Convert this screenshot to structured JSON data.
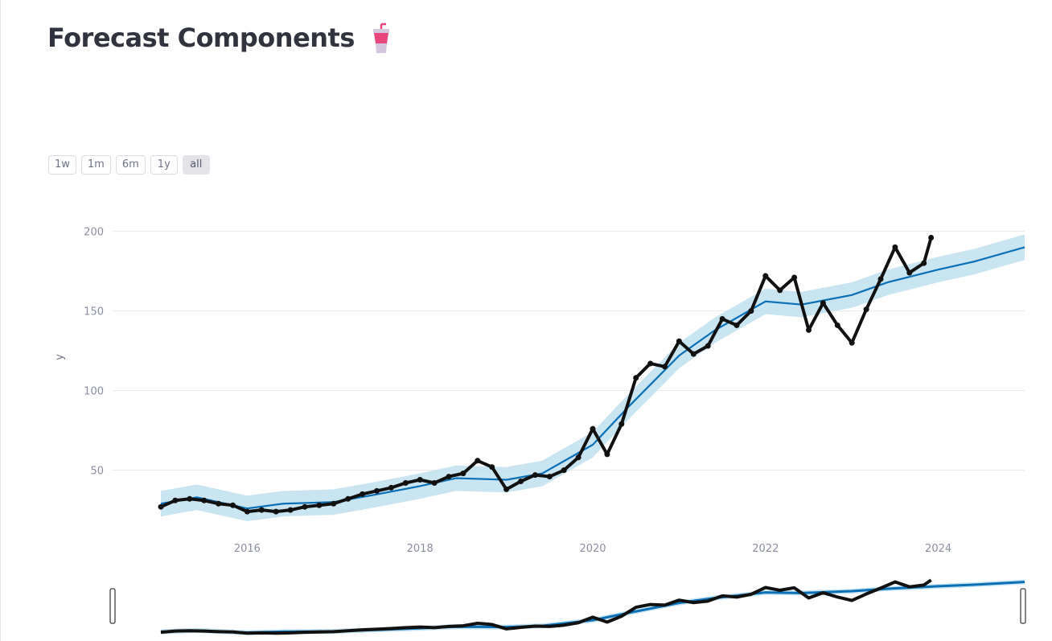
{
  "page": {
    "title": "Forecast Components"
  },
  "range_selector": {
    "buttons": [
      {
        "label": "1w",
        "active": false
      },
      {
        "label": "1m",
        "active": false
      },
      {
        "label": "6m",
        "active": false
      },
      {
        "label": "1y",
        "active": false
      },
      {
        "label": "all",
        "active": true
      }
    ]
  },
  "colors": {
    "actual_points": "#111111",
    "forecast_line": "#0a6fb5",
    "uncertainty_band": "#bfe0f0",
    "gridline": "#e8e8ec",
    "title_icon_cup": "#e8467c",
    "title_icon_lid": "#d4c6dc"
  },
  "chart_data": {
    "type": "line",
    "title": "",
    "xlabel": "",
    "ylabel": "y",
    "x_ticks": [
      "2016",
      "2018",
      "2020",
      "2022",
      "2024"
    ],
    "y_ticks": [
      50,
      100,
      150,
      200
    ],
    "xlim": [
      "2015-01-01",
      "2025-01-01"
    ],
    "ylim": [
      17,
      220
    ],
    "grid": true,
    "legend": "none",
    "series": [
      {
        "kind": "actual-points",
        "x": [
          "2015-01",
          "2015-03",
          "2015-05",
          "2015-07",
          "2015-09",
          "2015-11",
          "2016-01",
          "2016-03",
          "2016-05",
          "2016-07",
          "2016-09",
          "2016-11",
          "2017-01",
          "2017-03",
          "2017-05",
          "2017-07",
          "2017-09",
          "2017-11",
          "2018-01",
          "2018-03",
          "2018-05",
          "2018-07",
          "2018-09",
          "2018-11",
          "2019-01",
          "2019-03",
          "2019-05",
          "2019-07",
          "2019-09",
          "2019-11",
          "2020-01",
          "2020-03",
          "2020-05",
          "2020-07",
          "2020-09",
          "2020-11",
          "2021-01",
          "2021-03",
          "2021-05",
          "2021-07",
          "2021-09",
          "2021-11",
          "2022-01",
          "2022-03",
          "2022-05",
          "2022-07",
          "2022-09",
          "2022-11",
          "2023-01",
          "2023-03",
          "2023-05",
          "2023-07",
          "2023-09",
          "2023-11",
          "2023-12"
        ],
        "y": [
          27,
          31,
          32,
          31,
          29,
          28,
          24,
          25,
          24,
          25,
          27,
          28,
          29,
          32,
          35,
          37,
          39,
          42,
          44,
          42,
          46,
          48,
          56,
          52,
          38,
          43,
          47,
          46,
          50,
          58,
          76,
          60,
          79,
          108,
          117,
          115,
          131,
          123,
          128,
          145,
          141,
          150,
          172,
          163,
          171,
          138,
          155,
          141,
          130,
          151,
          170,
          190,
          174,
          180,
          196
        ]
      },
      {
        "kind": "forecast",
        "x": [
          "2015-01",
          "2015-06",
          "2016-01",
          "2016-06",
          "2017-01",
          "2017-06",
          "2018-01",
          "2018-06",
          "2019-01",
          "2019-06",
          "2020-01",
          "2020-06",
          "2021-01",
          "2021-06",
          "2022-01",
          "2022-06",
          "2023-01",
          "2023-06",
          "2024-01",
          "2024-06",
          "2025-01"
        ],
        "y": [
          29,
          33,
          26,
          29,
          30,
          34,
          40,
          45,
          44,
          48,
          66,
          90,
          122,
          138,
          156,
          154,
          160,
          168,
          176,
          181,
          190
        ],
        "lower": [
          21,
          25,
          18,
          21,
          22,
          26,
          32,
          37,
          36,
          40,
          58,
          82,
          114,
          130,
          148,
          146,
          152,
          160,
          168,
          173,
          182
        ],
        "upper": [
          37,
          41,
          34,
          37,
          38,
          42,
          48,
          53,
          52,
          56,
          74,
          98,
          130,
          146,
          164,
          162,
          168,
          176,
          184,
          189,
          198
        ]
      }
    ]
  }
}
